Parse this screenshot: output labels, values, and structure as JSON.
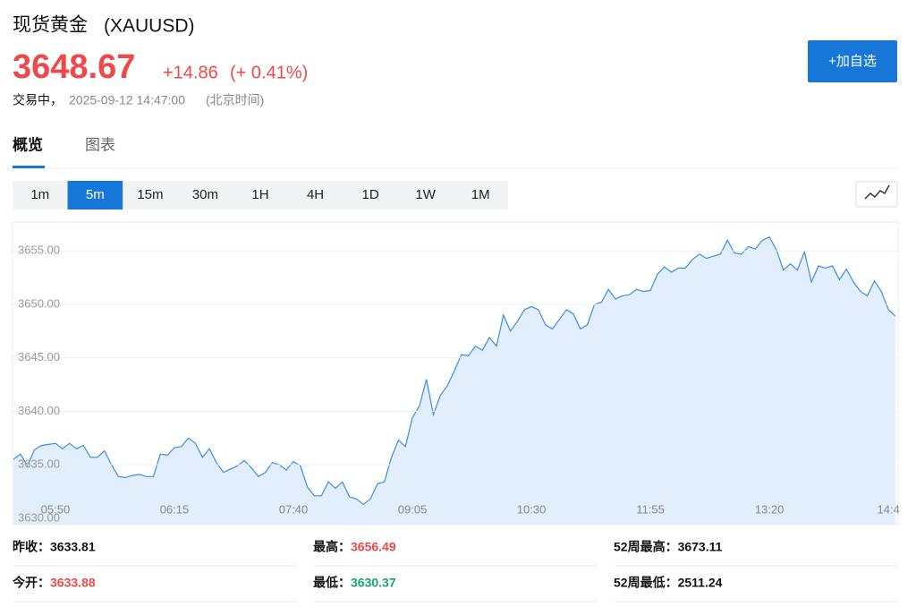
{
  "header": {
    "name": "现货黄金",
    "symbol": "(XAUUSD)",
    "price": "3648.67",
    "change": "+14.86",
    "change_pct": "(+ 0.41%)",
    "status": "交易中，",
    "timestamp": "2025-09-12 14:47:00",
    "timezone": "(北京时间)",
    "watch_button": "+加自选"
  },
  "tabs": [
    "概览",
    "图表"
  ],
  "intervals": [
    "1m",
    "5m",
    "15m",
    "30m",
    "1H",
    "4H",
    "1D",
    "1W",
    "1M"
  ],
  "chart_data": {
    "type": "line",
    "categories": [
      null,
      null,
      null,
      null,
      null,
      null,
      "05:50",
      null,
      null,
      null,
      null,
      null,
      null,
      null,
      null,
      null,
      null,
      null,
      null,
      null,
      null,
      null,
      null,
      "06:15",
      null,
      null,
      null,
      null,
      null,
      null,
      null,
      null,
      null,
      null,
      null,
      null,
      null,
      null,
      null,
      null,
      "07:40",
      null,
      null,
      null,
      null,
      null,
      null,
      null,
      null,
      null,
      null,
      null,
      null,
      null,
      null,
      null,
      null,
      "09:05",
      null,
      null,
      null,
      null,
      null,
      null,
      null,
      null,
      null,
      null,
      null,
      null,
      null,
      null,
      null,
      null,
      "10:30",
      null,
      null,
      null,
      null,
      null,
      null,
      null,
      null,
      null,
      null,
      null,
      null,
      null,
      null,
      null,
      null,
      "11:55",
      null,
      null,
      null,
      null,
      null,
      null,
      null,
      null,
      null,
      null,
      null,
      null,
      null,
      null,
      null,
      null,
      "13:20",
      null,
      null,
      null,
      null,
      null,
      null,
      null,
      null,
      null,
      null,
      null,
      null,
      null,
      null,
      null,
      null,
      "14:4",
      null
    ],
    "series": [
      {
        "color": "#3a8ee0",
        "values": [
          3635.5,
          3636.0,
          3634.9,
          3636.4,
          3636.8,
          3636.9,
          3637.0,
          3636.5,
          3637.0,
          3636.5,
          3636.8,
          3635.7,
          3635.7,
          3636.3,
          3635.0,
          3633.9,
          3633.8,
          3634.0,
          3634.1,
          3633.9,
          3633.9,
          3636.0,
          3635.9,
          3636.6,
          3636.7,
          3637.5,
          3637.0,
          3635.7,
          3636.5,
          3635.2,
          3634.3,
          3634.6,
          3634.9,
          3635.4,
          3634.7,
          3633.9,
          3634.3,
          3635.2,
          3635.0,
          3634.5,
          3635.3,
          3634.9,
          3632.9,
          3632.1,
          3632.1,
          3633.4,
          3632.8,
          3633.4,
          3632.0,
          3631.8,
          3631.3,
          3631.8,
          3633.2,
          3633.4,
          3635.7,
          3637.3,
          3636.7,
          3639.4,
          3640.5,
          3643.0,
          3639.7,
          3641.5,
          3642.4,
          3643.8,
          3645.3,
          3645.2,
          3646.1,
          3645.7,
          3646.9,
          3646.1,
          3649.0,
          3647.5,
          3648.4,
          3649.5,
          3649.8,
          3649.5,
          3648.1,
          3647.7,
          3648.6,
          3649.5,
          3649.1,
          3647.7,
          3648.1,
          3650.0,
          3650.2,
          3651.4,
          3650.5,
          3650.8,
          3650.9,
          3651.4,
          3651.2,
          3651.3,
          3652.8,
          3653.5,
          3653.0,
          3653.4,
          3653.4,
          3654.2,
          3654.7,
          3654.3,
          3654.5,
          3654.7,
          3656.0,
          3654.8,
          3654.7,
          3655.4,
          3655.2,
          3656.0,
          3656.3,
          3655.1,
          3653.2,
          3653.8,
          3653.2,
          3654.9,
          3652.1,
          3653.6,
          3653.4,
          3653.6,
          3652.3,
          3653.3,
          3652.1,
          3651.2,
          3650.8,
          3652.2,
          3651.2,
          3649.5,
          3648.9
        ]
      }
    ],
    "ylim": [
      3629.4,
      3657.7
    ],
    "yticks": [
      {
        "value": 3630,
        "label": "3630.00"
      },
      {
        "value": 3635,
        "label": "3635.00"
      },
      {
        "value": 3640,
        "label": "3640.00"
      },
      {
        "value": 3645,
        "label": "3645.00"
      },
      {
        "value": 3650,
        "label": "3650.00"
      },
      {
        "value": 3655,
        "label": "3655.00"
      }
    ],
    "grid": true,
    "fill_color": "#e2eefb"
  },
  "stats": [
    [
      {
        "label": "昨收：",
        "value": "3633.81"
      },
      {
        "label": "最高：",
        "value": "3656.49"
      },
      {
        "label": "52周最高：",
        "value": "3673.11"
      }
    ],
    [
      {
        "label": "今开：",
        "value": "3633.88"
      },
      {
        "label": "最低：",
        "value": "3630.37"
      },
      {
        "label": "52周最低：",
        "value": "2511.24"
      }
    ]
  ]
}
